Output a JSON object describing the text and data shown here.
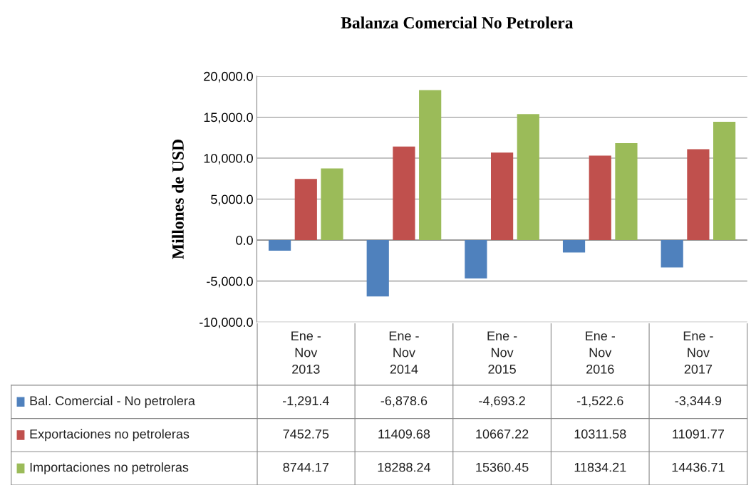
{
  "chart_data": {
    "type": "bar",
    "title": "Balanza Comercial No Petrolera",
    "ylabel": "Millones de USD",
    "categories": [
      "Ene -\nNov\n2013",
      "Ene -\nNov\n2014",
      "Ene -\nNov\n2015",
      "Ene -\nNov\n2016",
      "Ene -\nNov\n2017"
    ],
    "series": [
      {
        "name": "Bal. Comercial - No petrolera",
        "color": "#4f81bd",
        "values": [
          -1291.4,
          -6878.6,
          -4693.2,
          -1522.6,
          -3344.9
        ],
        "value_labels": [
          "-1,291.4",
          "-6,878.6",
          "-4,693.2",
          "-1,522.6",
          "-3,344.9"
        ]
      },
      {
        "name": "Exportaciones no petroleras",
        "color": "#c0504d",
        "values": [
          7452.75,
          11409.68,
          10667.22,
          10311.58,
          11091.77
        ],
        "value_labels": [
          "7452.75",
          "11409.68",
          "10667.22",
          "10311.58",
          "11091.77"
        ]
      },
      {
        "name": "Importaciones no petroleras",
        "color": "#9bbb59",
        "values": [
          8744.17,
          18288.24,
          15360.45,
          11834.21,
          14436.71
        ],
        "value_labels": [
          "8744.17",
          "18288.24",
          "15360.45",
          "11834.21",
          "14436.71"
        ]
      }
    ],
    "ylim": [
      -10000,
      20000
    ],
    "yticks": [
      {
        "value": -10000,
        "label": "-10,000.0"
      },
      {
        "value": -5000,
        "label": "-5,000.0"
      },
      {
        "value": 0,
        "label": "0.0"
      },
      {
        "value": 5000,
        "label": "5,000.0"
      },
      {
        "value": 10000,
        "label": "10,000.0"
      },
      {
        "value": 15000,
        "label": "15,000.0"
      },
      {
        "value": 20000,
        "label": "20,000.0"
      }
    ],
    "grid": "y",
    "legend": "bottom left"
  }
}
